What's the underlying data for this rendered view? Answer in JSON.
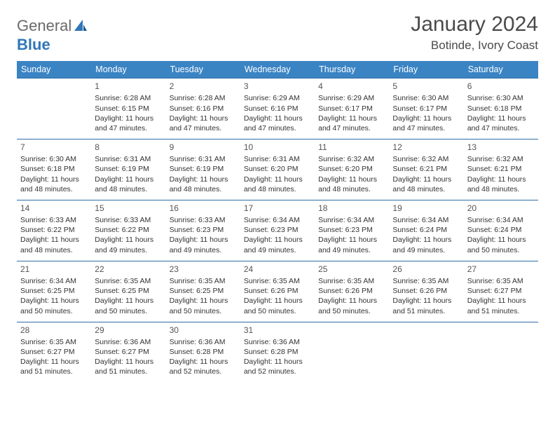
{
  "brand": {
    "part1": "General",
    "part2": "Blue"
  },
  "title": "January 2024",
  "location": "Botinde, Ivory Coast",
  "colors": {
    "header_bg": "#3b84c4",
    "header_text": "#ffffff",
    "row_border": "#2e6da4",
    "brand_gray": "#6a6a6a",
    "brand_blue": "#2f77b8",
    "text": "#333333"
  },
  "weekdays": [
    "Sunday",
    "Monday",
    "Tuesday",
    "Wednesday",
    "Thursday",
    "Friday",
    "Saturday"
  ],
  "weeks": [
    [
      {
        "day": "",
        "sunrise": "",
        "sunset": "",
        "daylight": ""
      },
      {
        "day": "1",
        "sunrise": "Sunrise: 6:28 AM",
        "sunset": "Sunset: 6:15 PM",
        "daylight": "Daylight: 11 hours and 47 minutes."
      },
      {
        "day": "2",
        "sunrise": "Sunrise: 6:28 AM",
        "sunset": "Sunset: 6:16 PM",
        "daylight": "Daylight: 11 hours and 47 minutes."
      },
      {
        "day": "3",
        "sunrise": "Sunrise: 6:29 AM",
        "sunset": "Sunset: 6:16 PM",
        "daylight": "Daylight: 11 hours and 47 minutes."
      },
      {
        "day": "4",
        "sunrise": "Sunrise: 6:29 AM",
        "sunset": "Sunset: 6:17 PM",
        "daylight": "Daylight: 11 hours and 47 minutes."
      },
      {
        "day": "5",
        "sunrise": "Sunrise: 6:30 AM",
        "sunset": "Sunset: 6:17 PM",
        "daylight": "Daylight: 11 hours and 47 minutes."
      },
      {
        "day": "6",
        "sunrise": "Sunrise: 6:30 AM",
        "sunset": "Sunset: 6:18 PM",
        "daylight": "Daylight: 11 hours and 47 minutes."
      }
    ],
    [
      {
        "day": "7",
        "sunrise": "Sunrise: 6:30 AM",
        "sunset": "Sunset: 6:18 PM",
        "daylight": "Daylight: 11 hours and 48 minutes."
      },
      {
        "day": "8",
        "sunrise": "Sunrise: 6:31 AM",
        "sunset": "Sunset: 6:19 PM",
        "daylight": "Daylight: 11 hours and 48 minutes."
      },
      {
        "day": "9",
        "sunrise": "Sunrise: 6:31 AM",
        "sunset": "Sunset: 6:19 PM",
        "daylight": "Daylight: 11 hours and 48 minutes."
      },
      {
        "day": "10",
        "sunrise": "Sunrise: 6:31 AM",
        "sunset": "Sunset: 6:20 PM",
        "daylight": "Daylight: 11 hours and 48 minutes."
      },
      {
        "day": "11",
        "sunrise": "Sunrise: 6:32 AM",
        "sunset": "Sunset: 6:20 PM",
        "daylight": "Daylight: 11 hours and 48 minutes."
      },
      {
        "day": "12",
        "sunrise": "Sunrise: 6:32 AM",
        "sunset": "Sunset: 6:21 PM",
        "daylight": "Daylight: 11 hours and 48 minutes."
      },
      {
        "day": "13",
        "sunrise": "Sunrise: 6:32 AM",
        "sunset": "Sunset: 6:21 PM",
        "daylight": "Daylight: 11 hours and 48 minutes."
      }
    ],
    [
      {
        "day": "14",
        "sunrise": "Sunrise: 6:33 AM",
        "sunset": "Sunset: 6:22 PM",
        "daylight": "Daylight: 11 hours and 48 minutes."
      },
      {
        "day": "15",
        "sunrise": "Sunrise: 6:33 AM",
        "sunset": "Sunset: 6:22 PM",
        "daylight": "Daylight: 11 hours and 49 minutes."
      },
      {
        "day": "16",
        "sunrise": "Sunrise: 6:33 AM",
        "sunset": "Sunset: 6:23 PM",
        "daylight": "Daylight: 11 hours and 49 minutes."
      },
      {
        "day": "17",
        "sunrise": "Sunrise: 6:34 AM",
        "sunset": "Sunset: 6:23 PM",
        "daylight": "Daylight: 11 hours and 49 minutes."
      },
      {
        "day": "18",
        "sunrise": "Sunrise: 6:34 AM",
        "sunset": "Sunset: 6:23 PM",
        "daylight": "Daylight: 11 hours and 49 minutes."
      },
      {
        "day": "19",
        "sunrise": "Sunrise: 6:34 AM",
        "sunset": "Sunset: 6:24 PM",
        "daylight": "Daylight: 11 hours and 49 minutes."
      },
      {
        "day": "20",
        "sunrise": "Sunrise: 6:34 AM",
        "sunset": "Sunset: 6:24 PM",
        "daylight": "Daylight: 11 hours and 50 minutes."
      }
    ],
    [
      {
        "day": "21",
        "sunrise": "Sunrise: 6:34 AM",
        "sunset": "Sunset: 6:25 PM",
        "daylight": "Daylight: 11 hours and 50 minutes."
      },
      {
        "day": "22",
        "sunrise": "Sunrise: 6:35 AM",
        "sunset": "Sunset: 6:25 PM",
        "daylight": "Daylight: 11 hours and 50 minutes."
      },
      {
        "day": "23",
        "sunrise": "Sunrise: 6:35 AM",
        "sunset": "Sunset: 6:25 PM",
        "daylight": "Daylight: 11 hours and 50 minutes."
      },
      {
        "day": "24",
        "sunrise": "Sunrise: 6:35 AM",
        "sunset": "Sunset: 6:26 PM",
        "daylight": "Daylight: 11 hours and 50 minutes."
      },
      {
        "day": "25",
        "sunrise": "Sunrise: 6:35 AM",
        "sunset": "Sunset: 6:26 PM",
        "daylight": "Daylight: 11 hours and 50 minutes."
      },
      {
        "day": "26",
        "sunrise": "Sunrise: 6:35 AM",
        "sunset": "Sunset: 6:26 PM",
        "daylight": "Daylight: 11 hours and 51 minutes."
      },
      {
        "day": "27",
        "sunrise": "Sunrise: 6:35 AM",
        "sunset": "Sunset: 6:27 PM",
        "daylight": "Daylight: 11 hours and 51 minutes."
      }
    ],
    [
      {
        "day": "28",
        "sunrise": "Sunrise: 6:35 AM",
        "sunset": "Sunset: 6:27 PM",
        "daylight": "Daylight: 11 hours and 51 minutes."
      },
      {
        "day": "29",
        "sunrise": "Sunrise: 6:36 AM",
        "sunset": "Sunset: 6:27 PM",
        "daylight": "Daylight: 11 hours and 51 minutes."
      },
      {
        "day": "30",
        "sunrise": "Sunrise: 6:36 AM",
        "sunset": "Sunset: 6:28 PM",
        "daylight": "Daylight: 11 hours and 52 minutes."
      },
      {
        "day": "31",
        "sunrise": "Sunrise: 6:36 AM",
        "sunset": "Sunset: 6:28 PM",
        "daylight": "Daylight: 11 hours and 52 minutes."
      },
      {
        "day": "",
        "sunrise": "",
        "sunset": "",
        "daylight": ""
      },
      {
        "day": "",
        "sunrise": "",
        "sunset": "",
        "daylight": ""
      },
      {
        "day": "",
        "sunrise": "",
        "sunset": "",
        "daylight": ""
      }
    ]
  ]
}
